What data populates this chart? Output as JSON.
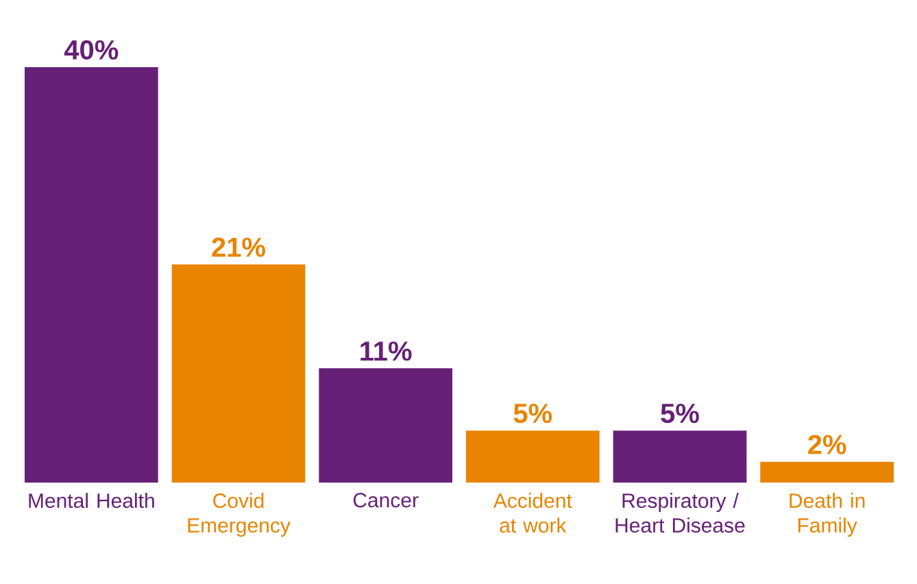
{
  "chart_data": {
    "type": "bar",
    "categories": [
      "Mental Health",
      "Covid Emergency",
      "Cancer",
      "Accident at work",
      "Respiratory / Heart Disease",
      "Death in Family"
    ],
    "values": [
      40,
      21,
      11,
      5,
      5,
      2
    ],
    "value_labels": [
      "40%",
      "21%",
      "11%",
      "5%",
      "5%",
      "2%"
    ],
    "colors": [
      "#662077",
      "#e88400",
      "#662077",
      "#e88400",
      "#662077",
      "#e88400"
    ]
  }
}
